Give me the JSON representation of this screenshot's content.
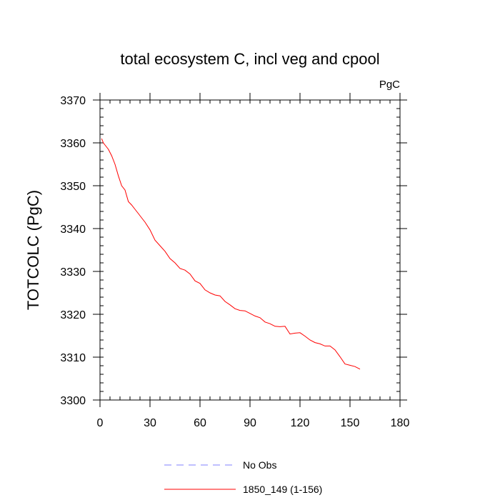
{
  "chart_data": {
    "type": "line",
    "title": "total ecosystem C, incl veg and cpool",
    "units": "PgC",
    "ylabel": "TOTCOLC  (PgC)",
    "xlabel": "",
    "xlim": [
      0,
      180
    ],
    "ylim": [
      3300,
      3370
    ],
    "x_ticks": [
      0,
      30,
      60,
      90,
      120,
      150,
      180
    ],
    "y_ticks": [
      3300,
      3310,
      3320,
      3330,
      3340,
      3350,
      3360,
      3370
    ],
    "x_ticks_label": [
      "0",
      "30",
      "60",
      "90",
      "120",
      "150",
      "180"
    ],
    "y_ticks_label": [
      "3300",
      "3310",
      "3320",
      "3330",
      "3340",
      "3350",
      "3360",
      "3370"
    ],
    "series": [
      {
        "name": "No Obs",
        "color": "#8080ff",
        "dash": "dashed",
        "x": [],
        "values": []
      },
      {
        "name": "1850_149 (1-156)",
        "color": "#ff0000",
        "dash": "solid",
        "x": [
          1,
          2,
          3,
          5,
          7,
          9,
          11,
          13,
          15,
          17,
          19,
          21,
          23,
          25,
          27,
          30,
          33,
          36,
          39,
          42,
          45,
          48,
          51,
          54,
          57,
          60,
          63,
          66,
          69,
          72,
          75,
          78,
          81,
          84,
          87,
          90,
          93,
          96,
          99,
          102,
          105,
          108,
          111,
          114,
          117,
          120,
          123,
          126,
          129,
          132,
          135,
          138,
          141,
          144,
          147,
          150,
          153,
          156
        ],
        "values": [
          3361,
          3360,
          3359.5,
          3358.5,
          3357,
          3355,
          3352.3,
          3350,
          3349,
          3346.3,
          3345.5,
          3344.5,
          3343.5,
          3342.5,
          3341.5,
          3339.7,
          3337.3,
          3336,
          3334.7,
          3333,
          3332,
          3330.7,
          3330.3,
          3329.4,
          3327.8,
          3327.2,
          3325.7,
          3325,
          3324.5,
          3324.3,
          3323,
          3322.2,
          3321.3,
          3320.9,
          3320.8,
          3320.2,
          3319.6,
          3319.2,
          3318.2,
          3317.8,
          3317.2,
          3317.1,
          3317.2,
          3315.4,
          3315.6,
          3315.7,
          3314.9,
          3314,
          3313.4,
          3313.1,
          3312.6,
          3312.6,
          3311.7,
          3310.1,
          3308.4,
          3308.1,
          3307.8,
          3307.2
        ]
      }
    ]
  }
}
